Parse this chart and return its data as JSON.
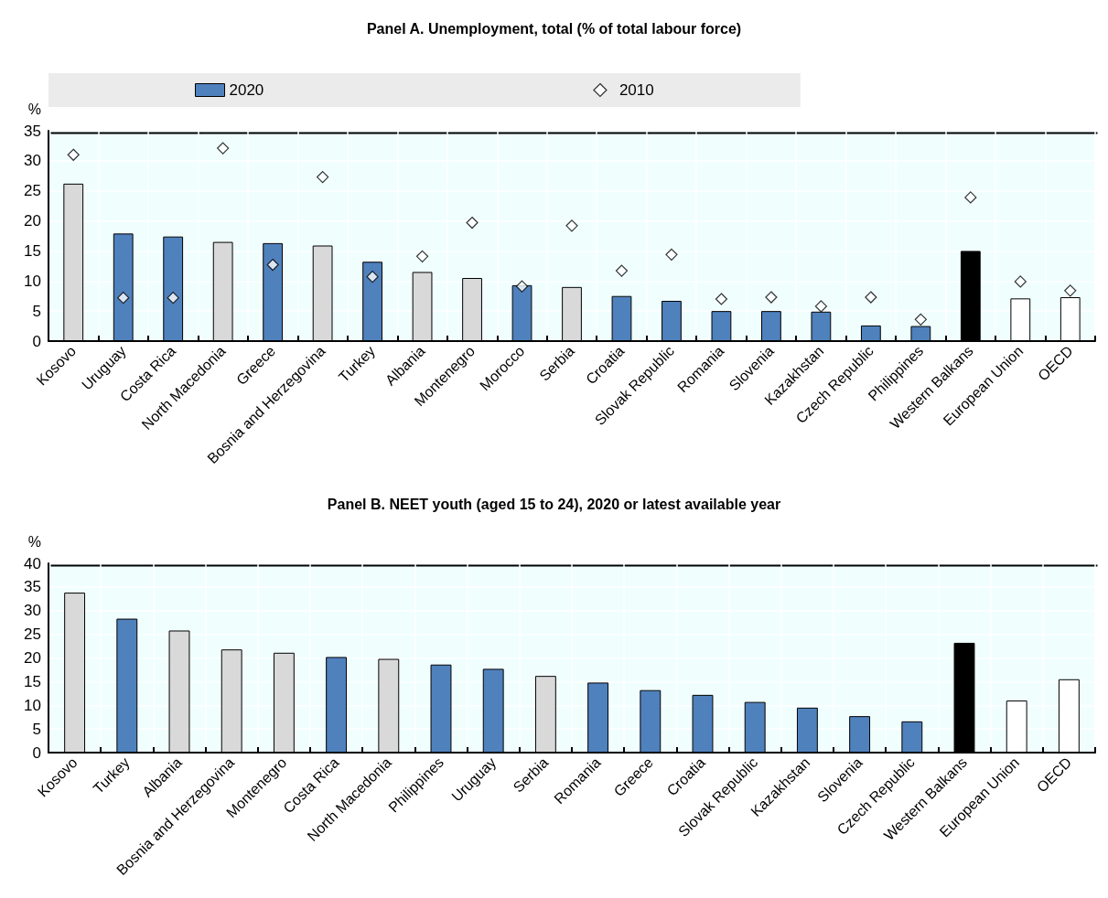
{
  "chart_data": [
    {
      "type": "bar",
      "title": "Panel A. Unemployment, total (% of total labour force)",
      "ylabel": "%",
      "categories": [
        "Kosovo",
        "Uruguay",
        "Costa Rica",
        "North Macedonia",
        "Greece",
        "Bosnia and Herzegovina",
        "Turkey",
        "Albania",
        "Montenegro",
        "Morocco",
        "Serbia",
        "Croatia",
        "Slovak Republic",
        "Romania",
        "Slovenia",
        "Kazakhstan",
        "Czech Republic",
        "Philippines",
        "Western Balkans",
        "European Union",
        "OECD"
      ],
      "series": [
        {
          "name": "2020",
          "type": "bar",
          "color": "#4f81bd",
          "values": [
            26.2,
            17.9,
            17.4,
            16.5,
            16.3,
            15.9,
            13.2,
            11.5,
            10.5,
            9.3,
            9.0,
            7.5,
            6.7,
            5.0,
            5.0,
            4.9,
            2.6,
            2.5,
            15.0,
            7.1,
            7.3
          ],
          "colors": [
            "#d9d9d9",
            "#4f81bd",
            "#4f81bd",
            "#d9d9d9",
            "#4f81bd",
            "#d9d9d9",
            "#4f81bd",
            "#d9d9d9",
            "#d9d9d9",
            "#4f81bd",
            "#d9d9d9",
            "#4f81bd",
            "#4f81bd",
            "#4f81bd",
            "#4f81bd",
            "#4f81bd",
            "#4f81bd",
            "#4f81bd",
            "#000000",
            "#ffffff",
            "#ffffff"
          ]
        },
        {
          "name": "2010",
          "type": "scatter",
          "color": "#ffffff",
          "values": [
            31.0,
            7.2,
            7.2,
            32.1,
            12.7,
            27.3,
            10.7,
            14.1,
            19.7,
            9.1,
            19.2,
            11.7,
            14.4,
            7.0,
            7.3,
            5.8,
            7.3,
            3.6,
            23.9,
            9.9,
            8.4
          ]
        }
      ],
      "ylim": [
        0,
        35
      ],
      "yticks": [
        0,
        5,
        10,
        15,
        20,
        25,
        30,
        35
      ],
      "grid": true,
      "legend": "top",
      "marker": "diamond"
    },
    {
      "type": "bar",
      "title": "Panel B. NEET youth (aged 15 to 24), 2020 or latest available year",
      "ylabel": "%",
      "categories": [
        "Kosovo",
        "Turkey",
        "Albania",
        "Bosnia and Herzegovina",
        "Montenegro",
        "Costa Rica",
        "North Macedonia",
        "Philippines",
        "Uruguay",
        "Serbia",
        "Romania",
        "Greece",
        "Croatia",
        "Slovak Republic",
        "Kazakhstan",
        "Slovenia",
        "Czech Republic",
        "Western Balkans",
        "European Union",
        "OECD"
      ],
      "values": [
        33.8,
        28.3,
        25.8,
        21.8,
        21.1,
        20.2,
        19.8,
        18.6,
        17.7,
        16.2,
        14.8,
        13.2,
        12.2,
        10.7,
        9.5,
        7.7,
        6.6,
        23.2,
        11.0,
        15.5
      ],
      "colors": [
        "#d9d9d9",
        "#4f81bd",
        "#d9d9d9",
        "#d9d9d9",
        "#d9d9d9",
        "#4f81bd",
        "#d9d9d9",
        "#4f81bd",
        "#4f81bd",
        "#d9d9d9",
        "#4f81bd",
        "#4f81bd",
        "#4f81bd",
        "#4f81bd",
        "#4f81bd",
        "#4f81bd",
        "#4f81bd",
        "#000000",
        "#ffffff",
        "#ffffff"
      ],
      "ylim": [
        0,
        40
      ],
      "yticks": [
        0,
        5,
        10,
        15,
        20,
        25,
        30,
        35,
        40
      ],
      "grid": true
    }
  ]
}
